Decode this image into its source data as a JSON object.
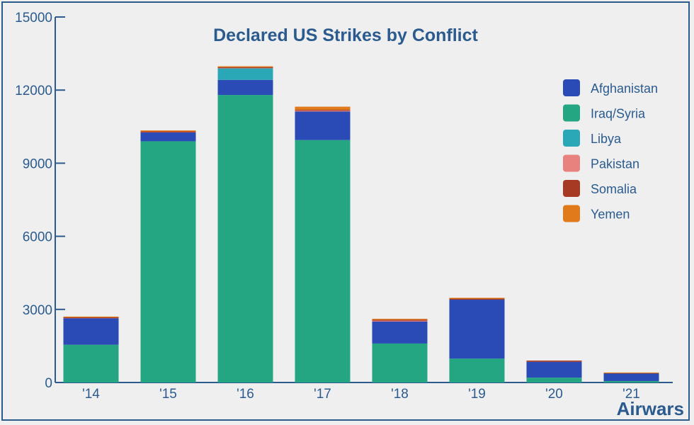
{
  "chart_data": {
    "type": "bar",
    "stacked": true,
    "title": "Declared US Strikes by Conflict",
    "categories": [
      "'14",
      "'15",
      "'16",
      "'17",
      "'18",
      "'19",
      "'20",
      "'21"
    ],
    "ylim": [
      0,
      15000
    ],
    "yticks": [
      0,
      3000,
      6000,
      9000,
      12000,
      15000
    ],
    "legend_position": "right",
    "grid": false,
    "series": [
      {
        "name": "Iraq/Syria",
        "color": "#24a683",
        "values": [
          1550,
          9900,
          11800,
          9950,
          1600,
          980,
          200,
          60
        ]
      },
      {
        "name": "Afghanistan",
        "color": "#2a4bb5",
        "values": [
          1100,
          380,
          620,
          1200,
          930,
          2420,
          650,
          340
        ]
      },
      {
        "name": "Libya",
        "color": "#2aa8b8",
        "values": [
          0,
          0,
          500,
          0,
          0,
          0,
          0,
          0
        ]
      },
      {
        "name": "Pakistan",
        "color": "#e8827e",
        "values": [
          20,
          15,
          5,
          5,
          5,
          0,
          0,
          0
        ]
      },
      {
        "name": "Somalia",
        "color": "#a63a22",
        "values": [
          10,
          10,
          15,
          35,
          45,
          65,
          50,
          7
        ]
      },
      {
        "name": "Yemen",
        "color": "#e07a1a",
        "values": [
          25,
          40,
          40,
          130,
          35,
          10,
          0,
          3
        ]
      }
    ],
    "legend": [
      "Afghanistan",
      "Iraq/Syria",
      "Libya",
      "Pakistan",
      "Somalia",
      "Yemen"
    ]
  },
  "branding": {
    "label": "Airwars"
  },
  "colors": {
    "axis": "#2c5a8c",
    "text": "#2b5b8e",
    "background": "#efefef"
  }
}
